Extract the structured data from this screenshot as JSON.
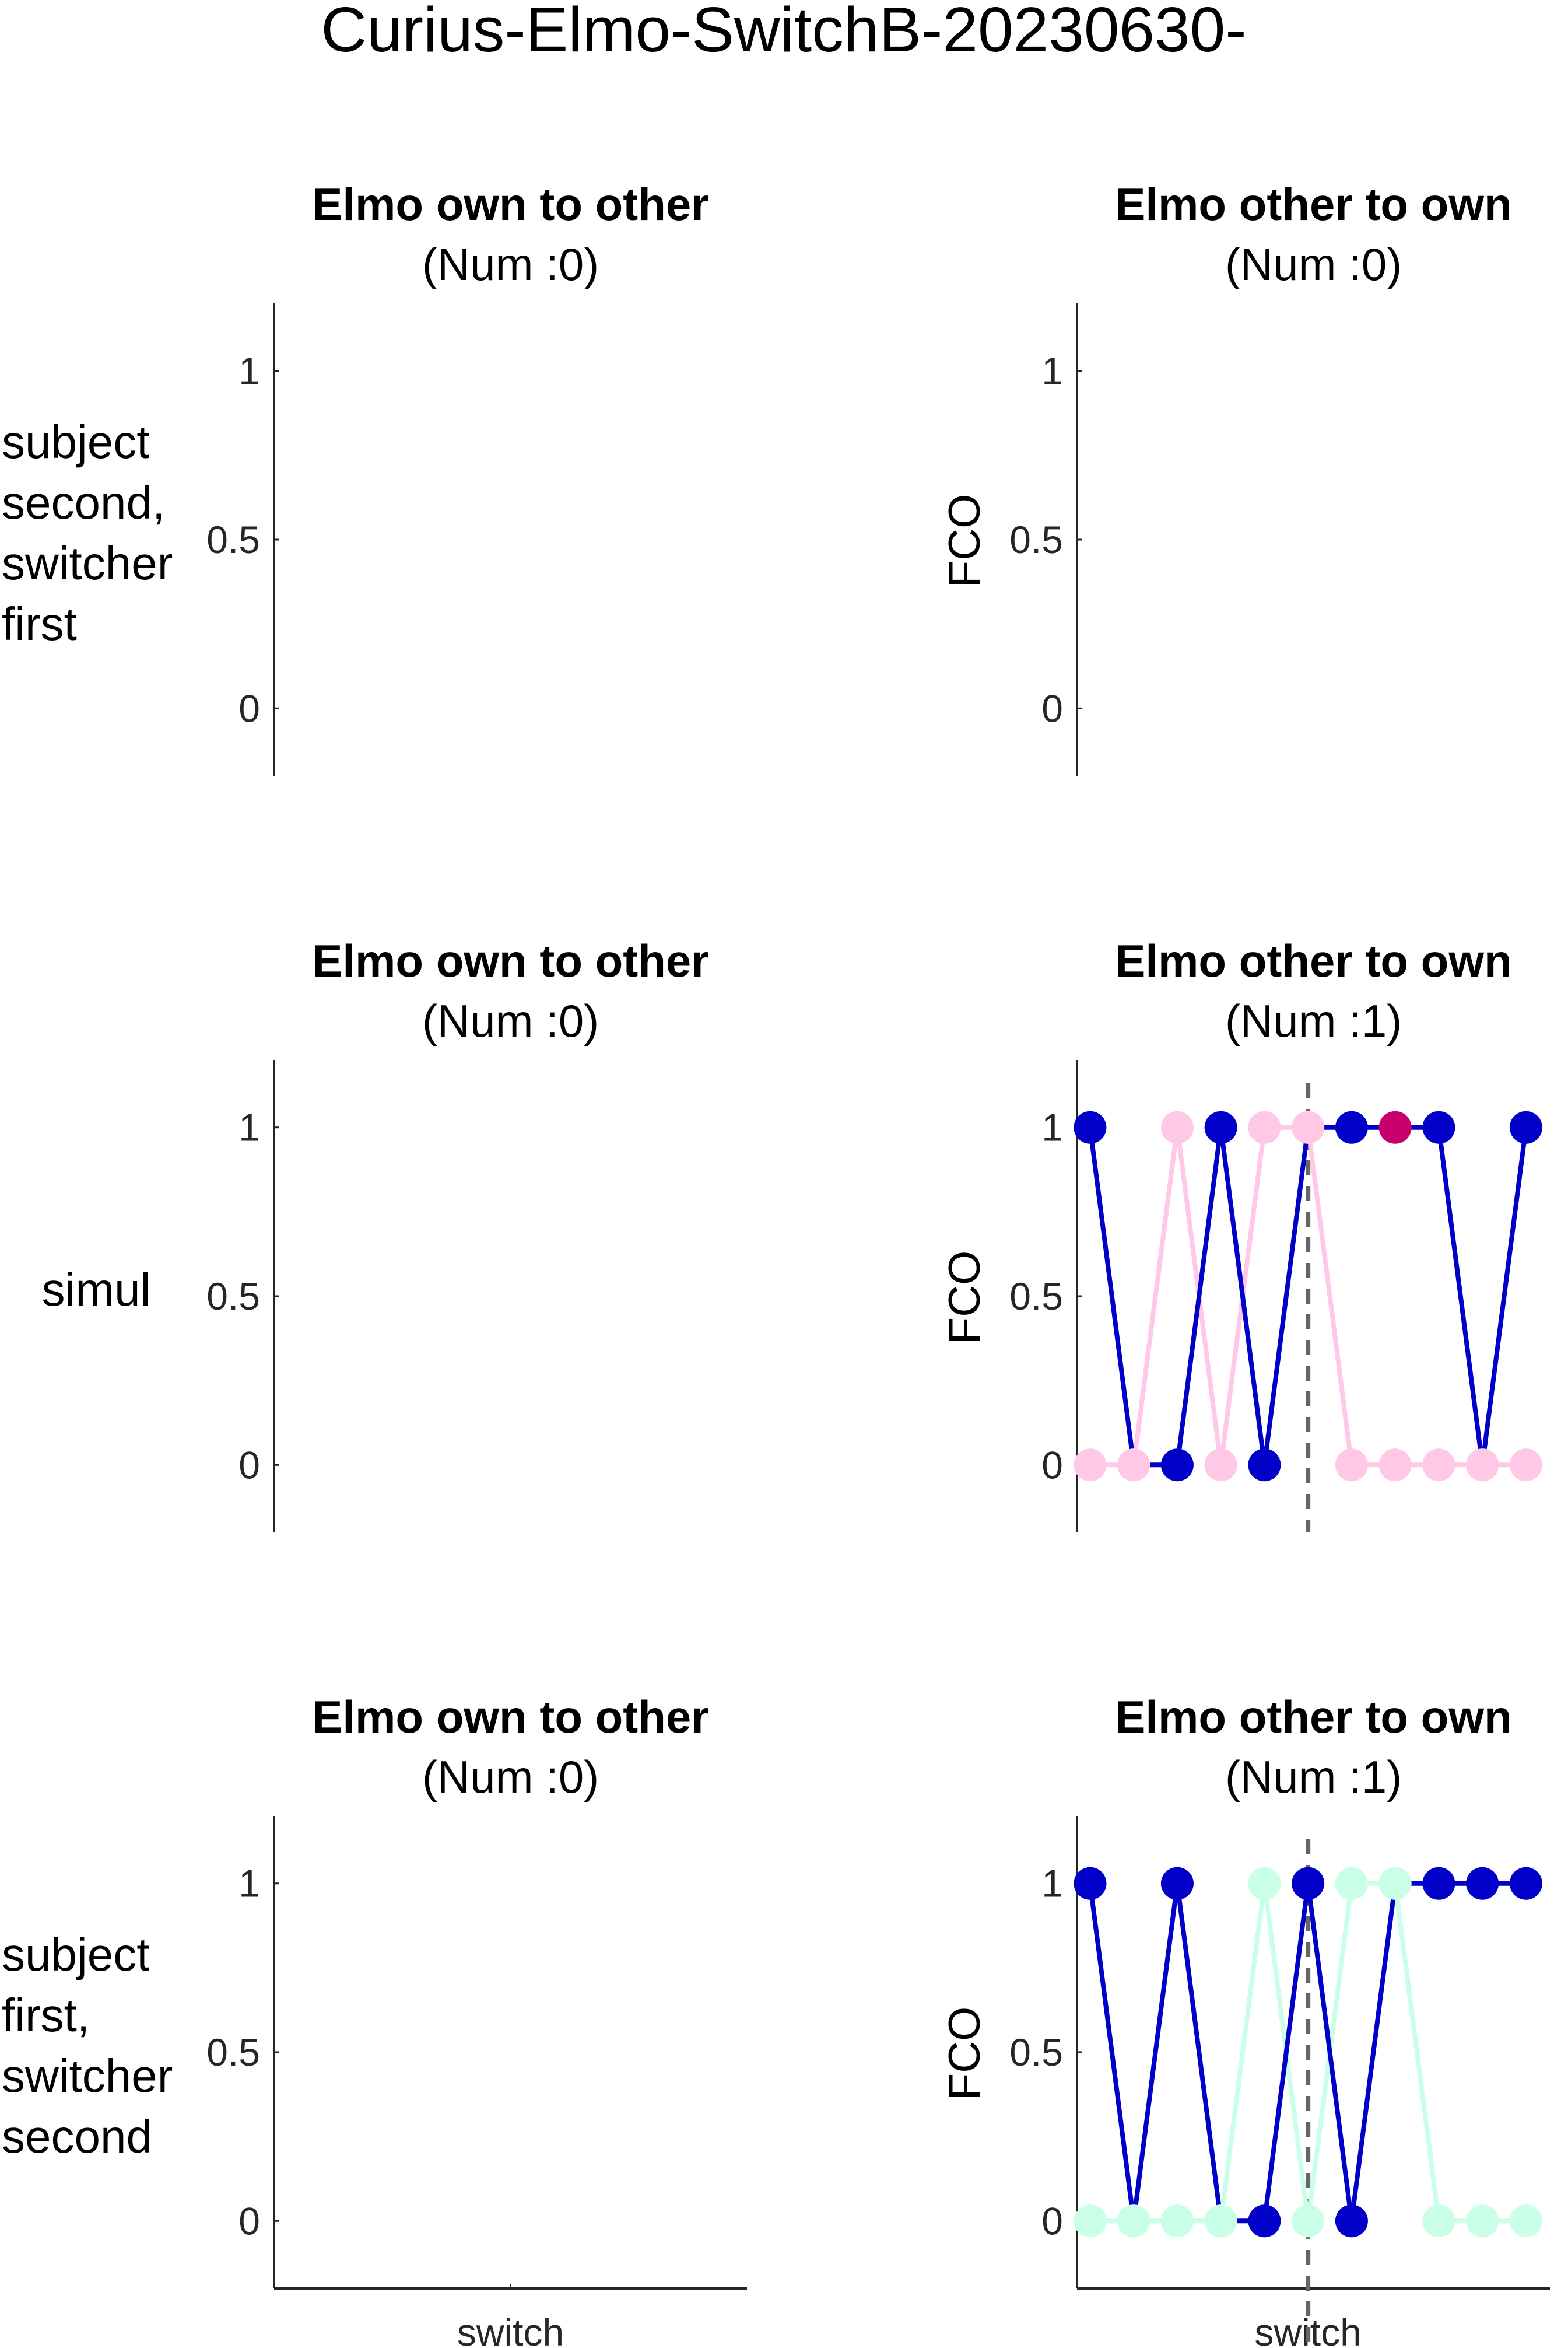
{
  "figure_title": "Curius-Elmo-SwitchB-20230630-",
  "chart_data": {
    "type": "line",
    "title": "Curius-Elmo-SwitchB-20230630-",
    "rows": [
      "subject second, switcher first",
      "simul",
      "subject first, switcher second"
    ],
    "row_label_lines": [
      [
        "subject",
        "second,",
        "switcher",
        "first"
      ],
      [
        "simul"
      ],
      [
        "subject",
        "first,",
        "switcher",
        "second"
      ]
    ],
    "ylim": [
      -0.2,
      1.2
    ],
    "yticks": [
      "0",
      "0.5",
      "1"
    ],
    "xtick_label": "switch",
    "colors": {
      "subject": "#0000c8",
      "subject_highlight": "#c8006e",
      "partner_simul": "#ffc8e6",
      "partner_second": "#c8ffe6",
      "switch_line": "#666666",
      "axis": "#262626"
    },
    "panels": [
      {
        "row": 0,
        "col": 0,
        "title": "Elmo own to other",
        "subtitle": "(Num :0)",
        "ylabel": "",
        "xlabel": "",
        "switch_x": null,
        "series": []
      },
      {
        "row": 0,
        "col": 1,
        "title": "Elmo other to own",
        "subtitle": "(Num :0)",
        "ylabel": "FCO",
        "xlabel": "",
        "switch_x": null,
        "series": []
      },
      {
        "row": 1,
        "col": 0,
        "title": "Elmo own to other",
        "subtitle": "(Num :0)",
        "ylabel": "",
        "xlabel": "",
        "switch_x": null,
        "series": []
      },
      {
        "row": 1,
        "col": 1,
        "title": "Elmo other to own",
        "subtitle": "(Num :1)",
        "ylabel": "FCO",
        "xlabel": "",
        "switch_x": 6,
        "series": [
          {
            "role": "partner",
            "color": "#ffc8e6",
            "x": [
              1,
              2,
              3,
              4,
              5,
              6,
              7,
              8,
              9,
              10,
              11
            ],
            "y": [
              0,
              0,
              1,
              0,
              1,
              1,
              0,
              0,
              0,
              0,
              0
            ]
          },
          {
            "role": "subject",
            "color": "#0000c8",
            "x": [
              1,
              2,
              3,
              4,
              5,
              6,
              7,
              8,
              9,
              10,
              11
            ],
            "y": [
              1,
              0,
              0,
              1,
              0,
              1,
              1,
              1,
              1,
              0,
              1
            ],
            "point_colors": [
              "#0000c8",
              "#ffc8e6",
              "#0000c8",
              "#0000c8",
              "#0000c8",
              "#ffc8e6",
              "#0000c8",
              "#c8006e",
              "#0000c8",
              "#ffc8e6",
              "#0000c8"
            ]
          }
        ]
      },
      {
        "row": 2,
        "col": 0,
        "title": "Elmo own to other",
        "subtitle": "(Num :0)",
        "ylabel": "",
        "xlabel": "switch",
        "switch_x": null,
        "series": []
      },
      {
        "row": 2,
        "col": 1,
        "title": "Elmo other to own",
        "subtitle": "(Num :1)",
        "ylabel": "FCO",
        "xlabel": "switch",
        "switch_x": 6,
        "series": [
          {
            "role": "partner",
            "color": "#c8ffe6",
            "x": [
              1,
              2,
              3,
              4,
              5,
              6,
              7,
              8,
              9,
              10,
              11
            ],
            "y": [
              0,
              0,
              0,
              0,
              1,
              0,
              1,
              1,
              0,
              0,
              0
            ]
          },
          {
            "role": "subject",
            "color": "#0000c8",
            "x": [
              1,
              2,
              3,
              4,
              5,
              6,
              7,
              8,
              9,
              10,
              11
            ],
            "y": [
              1,
              0,
              1,
              0,
              0,
              1,
              0,
              1,
              1,
              1,
              1
            ],
            "point_colors": [
              "#0000c8",
              "#c8ffe6",
              "#0000c8",
              "#c8ffe6",
              "#0000c8",
              "#0000c8",
              "#0000c8",
              "#c8ffe6",
              "#0000c8",
              "#0000c8",
              "#0000c8"
            ]
          }
        ]
      }
    ]
  }
}
